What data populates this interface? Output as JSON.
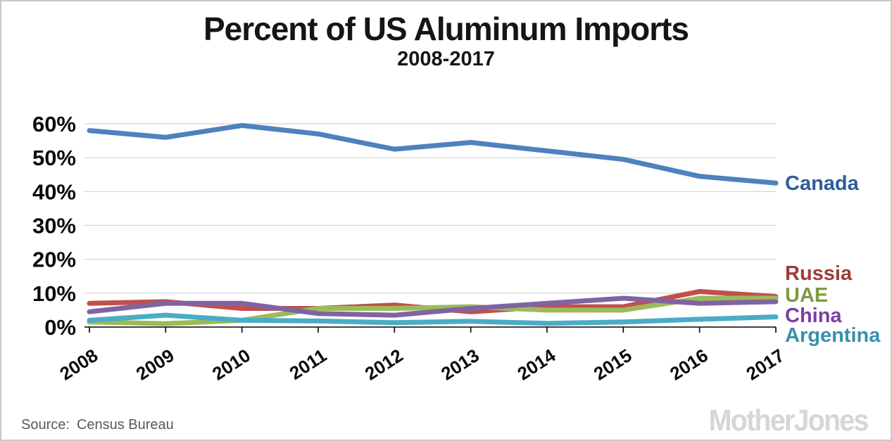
{
  "header": {
    "title": "Percent of US Aluminum Imports",
    "subtitle": "2008-2017"
  },
  "footer": {
    "source_label": "Source:",
    "source_value": "Census Bureau",
    "watermark": "MotherJones"
  },
  "chart_data": {
    "type": "line",
    "title": "Percent of US Aluminum Imports",
    "subtitle": "2008-2017",
    "x": [
      2008,
      2009,
      2010,
      2011,
      2012,
      2013,
      2014,
      2015,
      2016,
      2017
    ],
    "xlabel": "",
    "ylabel": "",
    "ylim": [
      0,
      60
    ],
    "yticks": [
      0,
      10,
      20,
      30,
      40,
      50,
      60
    ],
    "ytick_labels": [
      "0%",
      "10%",
      "20%",
      "30%",
      "40%",
      "50%",
      "60%"
    ],
    "grid": "horizontal",
    "gridline_color": "#d9d9d9",
    "axis_color": "#000000",
    "legend_position": "right-of-line-ends",
    "series": [
      {
        "name": "Canada",
        "line_color": "#4f81bd",
        "label_color": "#2e5c9a",
        "values": [
          58,
          56,
          59.5,
          57,
          52.5,
          54.5,
          52,
          49.5,
          44.5,
          42.5
        ]
      },
      {
        "name": "Russia",
        "line_color": "#c0504d",
        "label_color": "#9e3b38",
        "values": [
          7,
          7.5,
          5.5,
          5.5,
          6.5,
          4.5,
          6,
          6,
          10.5,
          9
        ]
      },
      {
        "name": "UAE",
        "line_color": "#9bbb59",
        "label_color": "#7e9a3f",
        "values": [
          1.5,
          1,
          2,
          5.5,
          5.5,
          6,
          5,
          5,
          8.5,
          8.5
        ]
      },
      {
        "name": "China",
        "line_color": "#8064a2",
        "label_color": "#7a3fa6",
        "values": [
          4.5,
          7,
          7,
          4,
          3.5,
          5.5,
          7,
          8.5,
          7,
          7.5
        ]
      },
      {
        "name": "Argentina",
        "line_color": "#4bacc6",
        "label_color": "#3990ac",
        "values": [
          2,
          3.5,
          2,
          1.8,
          1.3,
          1.7,
          1.1,
          1.5,
          2.3,
          3
        ]
      }
    ]
  }
}
